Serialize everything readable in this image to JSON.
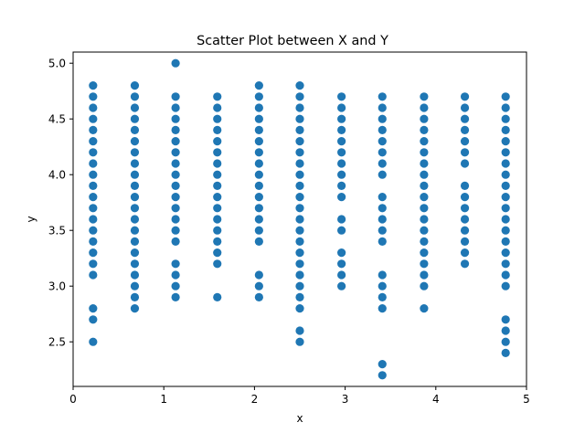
{
  "chart_data": {
    "type": "scatter",
    "title": "Scatter Plot between X and Y",
    "xlabel": "x",
    "ylabel": "y",
    "xlim": [
      0,
      5
    ],
    "ylim": [
      2.1,
      5.1
    ],
    "xticks": [
      0,
      1,
      2,
      3,
      4,
      5
    ],
    "yticks": [
      2.5,
      3.0,
      3.5,
      4.0,
      4.5,
      5.0
    ],
    "xtick_labels": [
      "0",
      "1",
      "2",
      "3",
      "4",
      "5"
    ],
    "ytick_labels": [
      "2.5",
      "3.0",
      "3.5",
      "4.0",
      "4.5",
      "5.0"
    ],
    "grid": false,
    "marker_color": "#1f77b4",
    "columns": [
      {
        "x": 0.22,
        "y": [
          4.8,
          4.7,
          4.6,
          4.5,
          4.4,
          4.3,
          4.2,
          4.1,
          4.0,
          3.9,
          3.8,
          3.7,
          3.6,
          3.5,
          3.4,
          3.3,
          3.2,
          3.1,
          2.8,
          2.7,
          2.5
        ]
      },
      {
        "x": 0.68,
        "y": [
          4.8,
          4.7,
          4.6,
          4.5,
          4.4,
          4.3,
          4.2,
          4.1,
          4.0,
          3.9,
          3.8,
          3.7,
          3.6,
          3.5,
          3.4,
          3.3,
          3.2,
          3.1,
          3.0,
          2.9,
          2.8
        ]
      },
      {
        "x": 1.13,
        "y": [
          5.0,
          4.7,
          4.6,
          4.5,
          4.4,
          4.3,
          4.2,
          4.1,
          4.0,
          3.9,
          3.8,
          3.7,
          3.6,
          3.5,
          3.4,
          3.2,
          3.1,
          3.0,
          2.9
        ]
      },
      {
        "x": 1.59,
        "y": [
          4.7,
          4.6,
          4.5,
          4.4,
          4.3,
          4.2,
          4.1,
          4.0,
          3.9,
          3.8,
          3.7,
          3.6,
          3.5,
          3.4,
          3.3,
          3.2,
          2.9
        ]
      },
      {
        "x": 2.05,
        "y": [
          4.8,
          4.7,
          4.6,
          4.5,
          4.4,
          4.3,
          4.2,
          4.1,
          4.0,
          3.9,
          3.8,
          3.7,
          3.6,
          3.5,
          3.4,
          3.1,
          3.0,
          2.9
        ]
      },
      {
        "x": 2.5,
        "y": [
          4.8,
          4.7,
          4.6,
          4.5,
          4.4,
          4.3,
          4.2,
          4.1,
          4.0,
          3.9,
          3.8,
          3.7,
          3.6,
          3.5,
          3.4,
          3.3,
          3.2,
          3.1,
          3.0,
          2.9,
          2.8,
          2.6,
          2.5
        ]
      },
      {
        "x": 2.96,
        "y": [
          4.7,
          4.6,
          4.5,
          4.4,
          4.3,
          4.2,
          4.1,
          4.0,
          3.9,
          3.8,
          3.6,
          3.5,
          3.3,
          3.2,
          3.1,
          3.0
        ]
      },
      {
        "x": 3.41,
        "y": [
          4.7,
          4.6,
          4.5,
          4.4,
          4.3,
          4.2,
          4.1,
          4.0,
          3.8,
          3.7,
          3.6,
          3.5,
          3.4,
          3.1,
          3.0,
          2.9,
          2.8,
          2.3,
          2.2
        ]
      },
      {
        "x": 3.87,
        "y": [
          4.7,
          4.6,
          4.5,
          4.4,
          4.3,
          4.2,
          4.1,
          4.0,
          3.9,
          3.8,
          3.7,
          3.6,
          3.5,
          3.4,
          3.3,
          3.2,
          3.1,
          3.0,
          2.8
        ]
      },
      {
        "x": 4.32,
        "y": [
          4.7,
          4.6,
          4.5,
          4.4,
          4.3,
          4.2,
          4.1,
          3.9,
          3.8,
          3.7,
          3.6,
          3.5,
          3.4,
          3.3,
          3.2
        ]
      },
      {
        "x": 4.77,
        "y": [
          4.7,
          4.6,
          4.5,
          4.4,
          4.3,
          4.2,
          4.1,
          4.0,
          3.9,
          3.8,
          3.7,
          3.6,
          3.5,
          3.4,
          3.3,
          3.2,
          3.1,
          3.0,
          2.7,
          2.6,
          2.5,
          2.4
        ]
      }
    ]
  }
}
